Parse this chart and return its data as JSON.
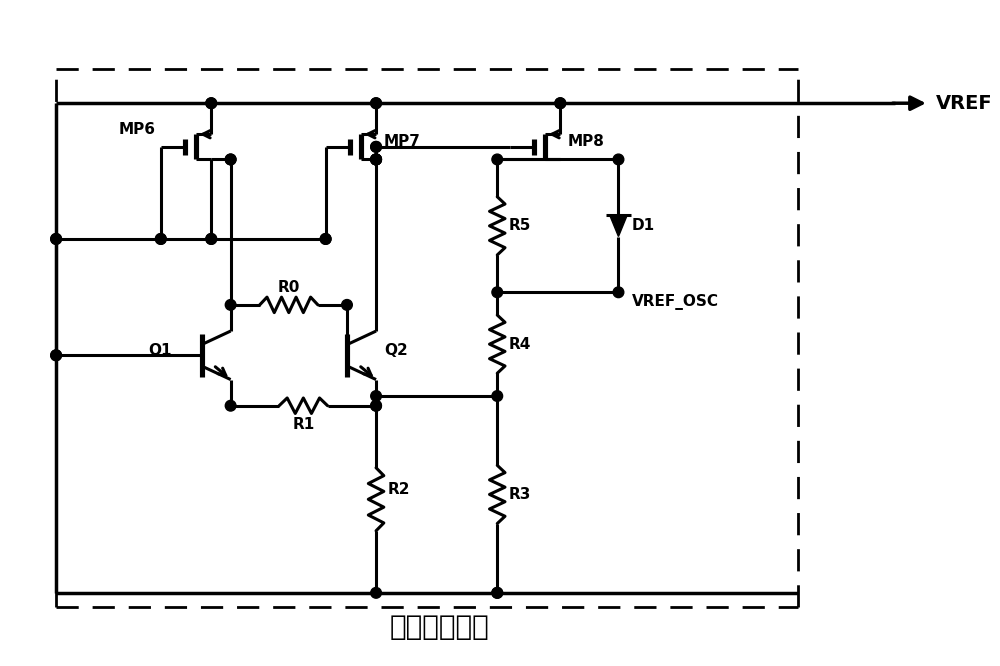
{
  "title": "带隙基准电路",
  "title_fontsize": 20,
  "vref_label": "VREF",
  "vref_osc_label": "VREF_OSC",
  "mp6_label": "MP6",
  "mp7_label": "MP7",
  "mp8_label": "MP8",
  "q1_label": "Q1",
  "q2_label": "Q2",
  "r0_label": "R0",
  "r1_label": "R1",
  "r2_label": "R2",
  "r3_label": "R3",
  "r4_label": "R4",
  "r5_label": "R5",
  "d1_label": "D1",
  "line_color": "#000000",
  "background_color": "#ffffff",
  "lw": 2.2,
  "dot_r": 0.055
}
